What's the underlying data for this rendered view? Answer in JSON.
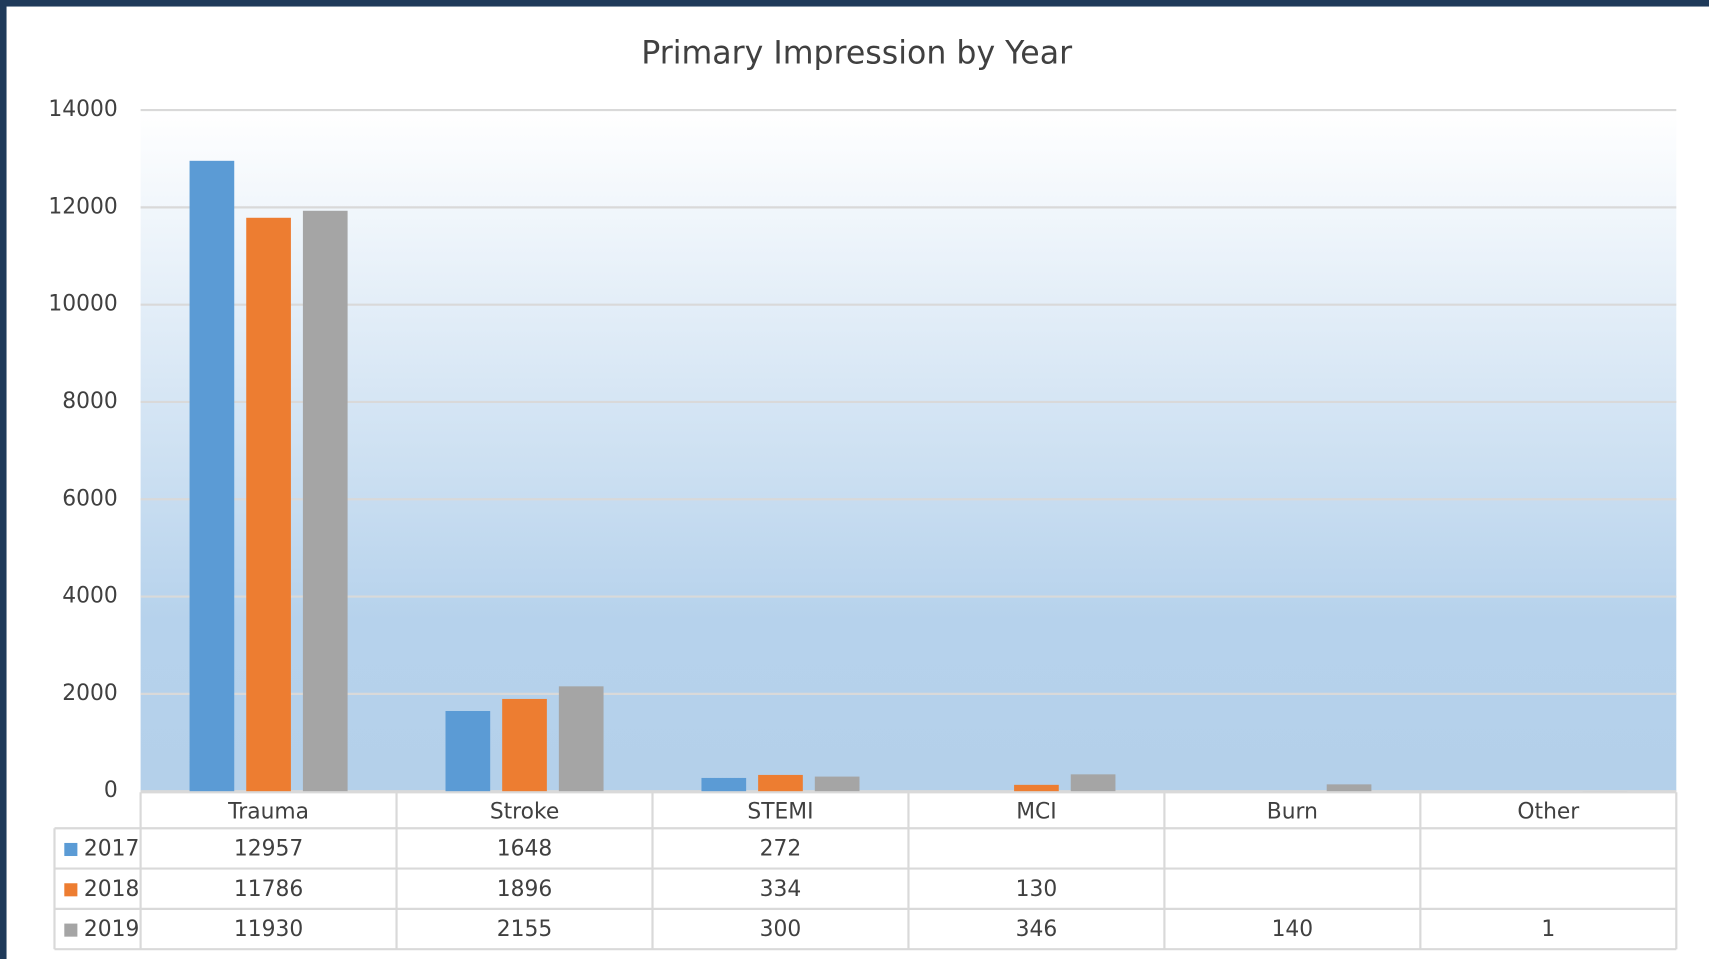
{
  "chart_data": {
    "type": "bar",
    "title": "Primary Impression by Year",
    "categories": [
      "Trauma",
      "Stroke",
      "STEMI",
      "MCI",
      "Burn",
      "Other"
    ],
    "series": [
      {
        "name": "2017",
        "color": "#5b9bd5",
        "values": [
          12957,
          1648,
          272,
          null,
          null,
          null
        ]
      },
      {
        "name": "2018",
        "color": "#ed7d31",
        "values": [
          11786,
          1896,
          334,
          130,
          null,
          null
        ]
      },
      {
        "name": "2019",
        "color": "#a5a5a5",
        "values": [
          11930,
          2155,
          300,
          346,
          140,
          1
        ]
      }
    ],
    "ylim": [
      0,
      14000
    ],
    "yticks": [
      0,
      2000,
      4000,
      6000,
      8000,
      10000,
      12000,
      14000
    ],
    "grid": true
  }
}
